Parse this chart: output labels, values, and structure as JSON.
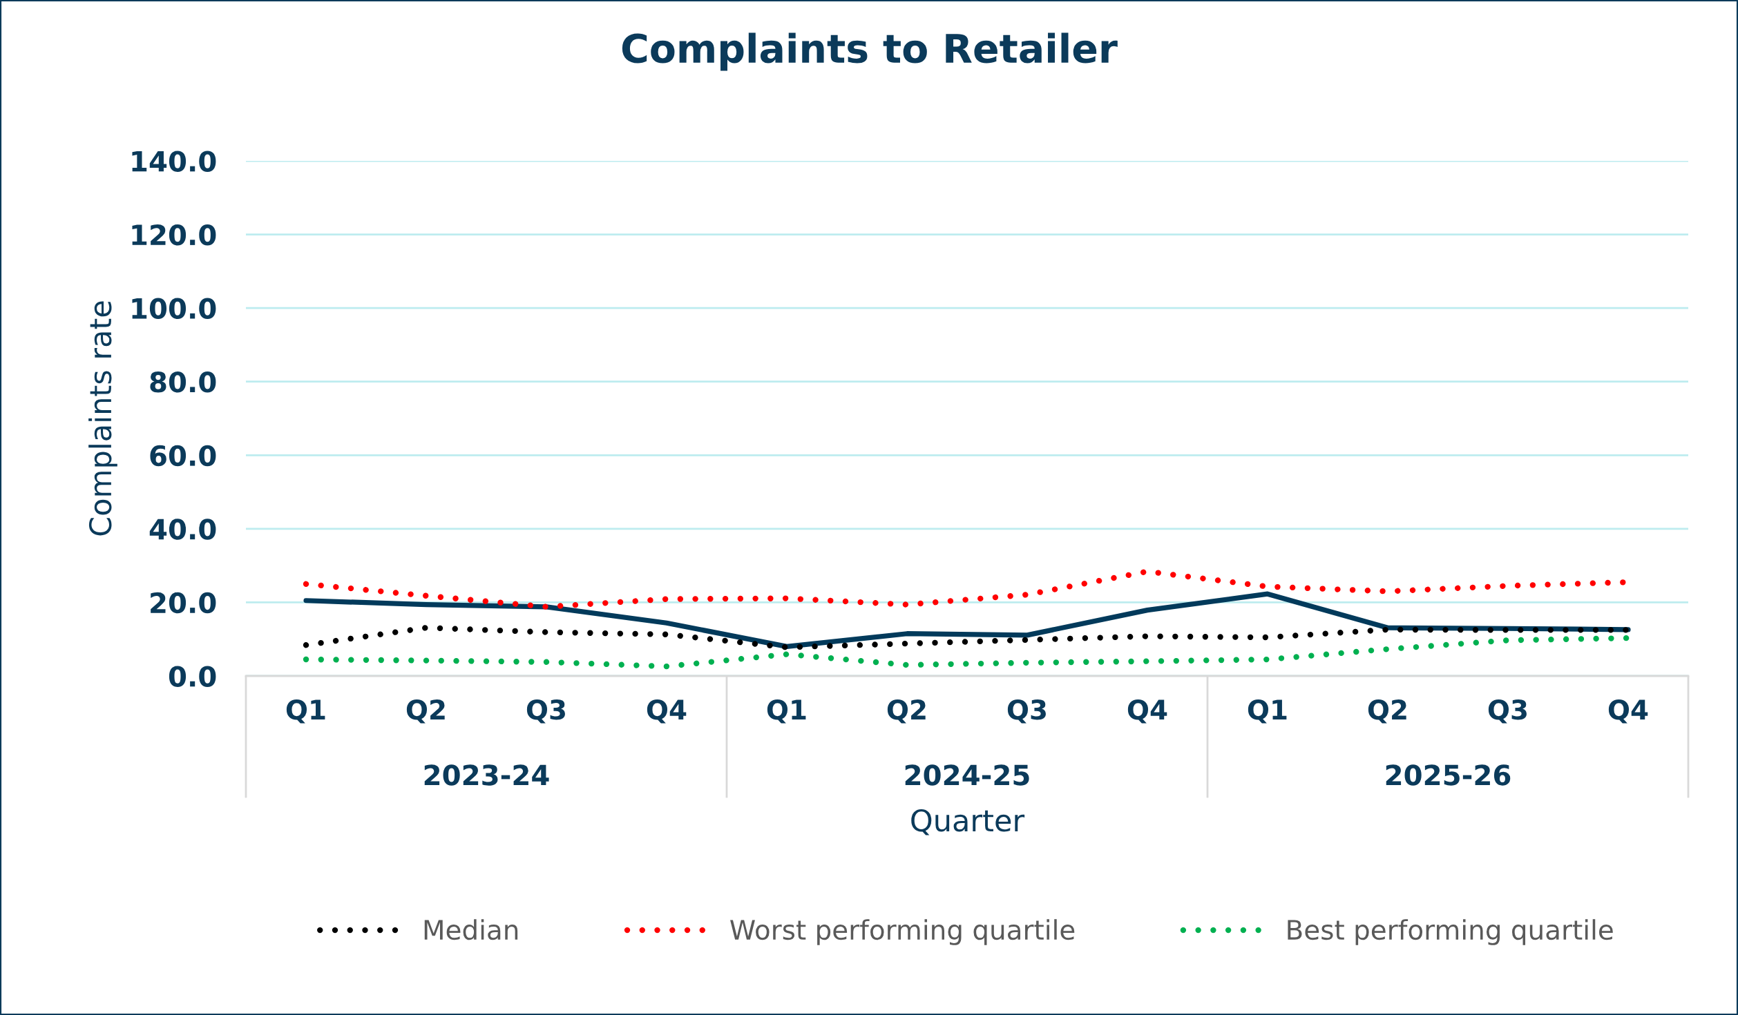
{
  "chart_data": {
    "type": "line",
    "title": "Complaints to Retailer",
    "xlabel": "Quarter",
    "ylabel": "Complaints rate",
    "categories": [
      "Q1",
      "Q2",
      "Q3",
      "Q4",
      "Q1",
      "Q2",
      "Q3",
      "Q4",
      "Q1",
      "Q2",
      "Q3",
      "Q4"
    ],
    "annotations": [
      "2023-24",
      "2024-25",
      "2025-26"
    ],
    "ylim": [
      0,
      140
    ],
    "yticks": [
      {
        "value": 0,
        "label": "0.0"
      },
      {
        "value": 20,
        "label": "20.0"
      },
      {
        "value": 40,
        "label": "40.0"
      },
      {
        "value": 60,
        "label": "60.0"
      },
      {
        "value": 80,
        "label": "80.0"
      },
      {
        "value": 100,
        "label": "100.0"
      },
      {
        "value": 120,
        "label": "120.0"
      },
      {
        "value": 140,
        "label": "140.0"
      }
    ],
    "grid": "y",
    "legend": "bottom",
    "series": [
      {
        "color": "#023a5b",
        "line_style": "solid",
        "values": [
          20.5,
          19.4,
          18.8,
          14.4,
          8.0,
          11.5,
          11.1,
          17.9,
          22.3,
          13.1,
          12.9,
          12.6
        ]
      },
      {
        "name": "Median",
        "color": "#000000",
        "line_style": "dotted",
        "values": [
          8.4,
          13.1,
          11.9,
          11.3,
          7.8,
          8.8,
          9.8,
          10.8,
          10.5,
          12.6,
          12.5,
          12.5
        ]
      },
      {
        "name": "Worst performing quartile",
        "color": "#ff0000",
        "line_style": "dotted",
        "values": [
          25.0,
          21.8,
          18.8,
          20.9,
          21.1,
          19.4,
          22.1,
          28.4,
          24.3,
          23.0,
          24.5,
          25.5
        ]
      },
      {
        "name": "Best performing quartile",
        "color": "#00b050",
        "line_style": "dotted",
        "values": [
          4.5,
          4.2,
          3.8,
          2.6,
          5.9,
          3.0,
          3.6,
          4.0,
          4.5,
          7.3,
          9.7,
          10.3
        ]
      }
    ]
  }
}
